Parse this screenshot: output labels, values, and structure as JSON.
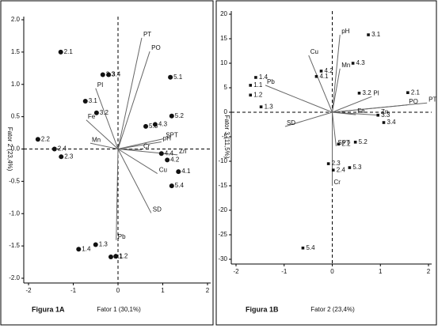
{
  "chart_data": [
    {
      "type": "biplot",
      "caption": "Figura 1A",
      "xlabel": "Fator 1 (30,1%)",
      "ylabel": "Fator 2 (23,4%)",
      "marker": "circle",
      "xlim": [
        -2,
        2
      ],
      "xticks": [
        -2,
        -1,
        0,
        1,
        2
      ],
      "ylim": [
        -2,
        2
      ],
      "yticks": [
        {
          "value": -2,
          "label": "-2.0"
        },
        {
          "value": -1.5,
          "label": "-1.5"
        },
        {
          "value": -1,
          "label": "-1.0"
        },
        {
          "value": -0.5,
          "label": "-0.5"
        },
        {
          "value": 0,
          "label": "0.0"
        },
        {
          "value": 0.5,
          "label": "0.5"
        },
        {
          "value": 1,
          "label": "1.0"
        },
        {
          "value": 1.5,
          "label": "1.5"
        },
        {
          "value": 2,
          "label": "2.0"
        }
      ],
      "point_labels": [
        "2.1",
        "3.3",
        "3.4",
        "5.1",
        "3.1",
        "3.2",
        "5.2",
        "5.3",
        "4.3",
        "2.2",
        "2.4",
        "2.3",
        "4.4",
        "4.2",
        "4.1",
        "5.4",
        "1.4",
        "1.3",
        "1.1",
        "1.2"
      ],
      "x": [
        -1.28,
        -0.34,
        -0.21,
        1.17,
        -0.73,
        -0.48,
        1.2,
        0.62,
        0.83,
        -1.79,
        -1.42,
        -1.27,
        0.97,
        1.1,
        1.35,
        1.2,
        -0.88,
        -0.5,
        -0.16,
        -0.05
      ],
      "y": [
        1.5,
        1.15,
        1.15,
        1.11,
        0.74,
        0.56,
        0.51,
        0.35,
        0.38,
        0.15,
        0.0,
        -0.12,
        -0.07,
        -0.17,
        -0.35,
        -0.57,
        -1.55,
        -1.48,
        -1.67,
        -1.66
      ],
      "vector_labels": [
        "PT",
        "PO",
        "PI",
        "Fe",
        "Mn",
        "pH",
        "SPT",
        "Zn",
        "Cr",
        "Cu",
        "SD",
        "Pb"
      ],
      "vector_x": [
        0.53,
        0.71,
        -0.5,
        -0.71,
        -0.62,
        0.97,
        1.03,
        1.33,
        0.53,
        0.88,
        0.74,
        -0.04
      ],
      "vector_y": [
        1.72,
        1.51,
        0.94,
        0.45,
        0.09,
        0.11,
        0.16,
        -0.09,
        -0.01,
        -0.38,
        -0.99,
        -1.41
      ]
    },
    {
      "type": "biplot",
      "caption": "Figura 1B",
      "xlabel": "Fator 2 (23,4%)",
      "ylabel": "Fator 3 (11,5%)",
      "marker": "square",
      "xlim": [
        -2,
        2
      ],
      "xticks": [
        -2,
        -1,
        0,
        1,
        2
      ],
      "ylim": [
        -30,
        20
      ],
      "yticks": [
        -30,
        -25,
        -20,
        -15,
        -10,
        -5,
        0,
        5,
        10,
        15,
        20
      ],
      "point_labels": [
        "3.1",
        "4.3",
        "1.4",
        "4.2",
        "4.1",
        "1.1",
        "1.2",
        "1.3",
        "3.2",
        "2.1",
        "3.3",
        "3.4",
        "2.2",
        "5.2",
        "2.3",
        "2.4",
        "5.3",
        "5.4"
      ],
      "x": [
        0.75,
        0.43,
        -1.59,
        -0.23,
        -0.33,
        -1.7,
        -1.7,
        -1.48,
        0.56,
        1.57,
        0.95,
        1.07,
        0.13,
        0.48,
        -0.08,
        0.02,
        0.36,
        -0.61
      ],
      "y": [
        15.8,
        10.0,
        7.1,
        8.4,
        7.3,
        5.5,
        3.5,
        1.1,
        3.9,
        4.0,
        -0.6,
        -2.1,
        -6.5,
        -6.1,
        -10.5,
        -11.8,
        -11.3,
        -27.7
      ],
      "vector_labels": [
        "pH",
        "Cu",
        "Mn",
        "Pb",
        "PT",
        "PO",
        "PI",
        "Fe",
        "Zn",
        "SD",
        "SPT",
        "Cr"
      ],
      "vector_x": [
        0.16,
        -0.49,
        0.16,
        -1.39,
        1.97,
        1.56,
        0.82,
        0.49,
        0.98,
        -0.98,
        0.08,
        0
      ],
      "vector_y": [
        15.8,
        11.6,
        8.9,
        5.5,
        1.9,
        1.5,
        3.2,
        -0.5,
        -0.6,
        -2.9,
        -6.9,
        -15.0
      ]
    }
  ]
}
